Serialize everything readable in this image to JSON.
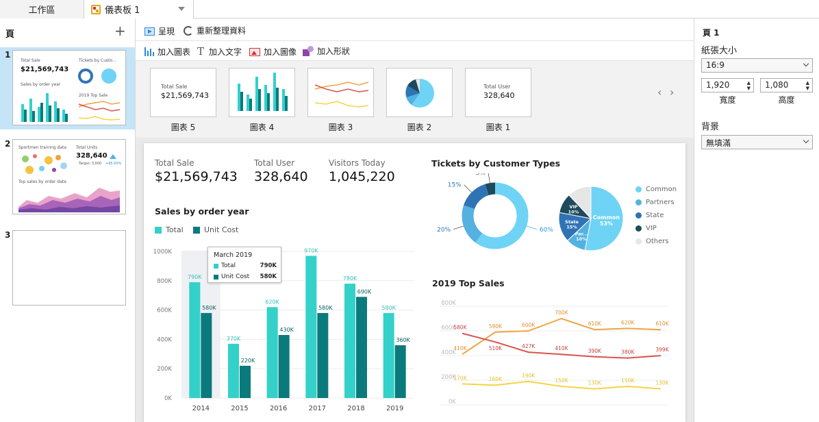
{
  "tabs": {
    "workspace": "工作區",
    "dashboard": "儀表板 1"
  },
  "pages_panel": {
    "title": "頁",
    "pages": [
      {
        "number": "1",
        "total_sale_label": "Total Sale",
        "total_sale_value": "$21,569,743",
        "tickets_label": "Tickets by Custo...",
        "sales_label": "Sales by order year",
        "top_sale_label": "2019 Top Sale"
      },
      {
        "number": "2",
        "sportmen_label": "Sportmen training data",
        "total_units_label": "Total Units",
        "total_units_value": "328,640",
        "target_label": "Target: 3,000",
        "delta_label": "+95.00%",
        "top_sales_label": "Top sales by order date"
      },
      {
        "number": "3"
      }
    ]
  },
  "toolbar": {
    "present": "呈現",
    "refresh": "重新整理資料",
    "add_chart": "加入圖表",
    "add_text": "加入文字",
    "add_image": "加入圖像",
    "add_shape": "加入形狀"
  },
  "gallery": {
    "cards": [
      {
        "label": "圖表 5",
        "kpi_label": "Total Sale",
        "kpi_value": "$21,569,743"
      },
      {
        "label": "圖表 4"
      },
      {
        "label": "圖表 3"
      },
      {
        "label": "圖表 2"
      },
      {
        "label": "圖表 1",
        "kpi_label": "Total User",
        "kpi_value": "328,640"
      }
    ],
    "nav_prev": "‹",
    "nav_next": "›"
  },
  "kpis": [
    {
      "label": "Total Sale",
      "value": "$21,569,743"
    },
    {
      "label": "Total User",
      "value": "328,640"
    },
    {
      "label": "Visitors Today",
      "value": "1,045,220"
    }
  ],
  "colors": {
    "total": "#33d1c9",
    "unit_cost": "#0b7a7d",
    "common": "#6fd3f5",
    "partners": "#54b1e0",
    "state": "#2f73b5",
    "vip": "#1e4a5c",
    "others": "#e6e6e6",
    "line_orange": "#f0a342",
    "line_red": "#d9534f",
    "line_yellow": "#f5d442"
  },
  "chart_data": [
    {
      "type": "bar",
      "title": "Sales by order year",
      "categories": [
        "2014",
        "2015",
        "2016",
        "2017",
        "2018",
        "2019"
      ],
      "series": [
        {
          "name": "Total",
          "values": [
            790,
            370,
            620,
            970,
            780,
            580
          ],
          "labels": [
            "790K",
            "370K",
            "620K",
            "970K",
            "780K",
            "580K"
          ]
        },
        {
          "name": "Unit Cost",
          "values": [
            580,
            220,
            430,
            580,
            690,
            360
          ],
          "labels": [
            "580K",
            "220K",
            "430K",
            "580K",
            "690K",
            "360K"
          ]
        }
      ],
      "ylim": [
        0,
        1000
      ],
      "yticks": [
        "0K",
        "200K",
        "400K",
        "600K",
        "800K",
        "1000K"
      ],
      "grid": true,
      "legend": "top-left",
      "tooltip": {
        "title": "March 2019",
        "rows": [
          {
            "name": "Total",
            "value": "790K"
          },
          {
            "name": "Unit Cost",
            "value": "580K"
          }
        ]
      }
    },
    {
      "type": "pie",
      "title": "Tickets by Customer Types",
      "variant": "donut",
      "slices": [
        {
          "value": 60,
          "label": "60%"
        },
        {
          "value": 20,
          "label": "20%"
        },
        {
          "value": 15,
          "label": "15%"
        },
        {
          "value": 5,
          "label": "5%"
        }
      ]
    },
    {
      "type": "pie",
      "slices": [
        {
          "name": "Common",
          "value": 53,
          "label": "Common",
          "pct": "53%"
        },
        {
          "name": "Partners",
          "value": 10,
          "label": "Par...",
          "pct": "10%"
        },
        {
          "name": "State",
          "value": 15,
          "label": "State",
          "pct": "15%"
        },
        {
          "name": "VIP",
          "value": 10,
          "label": "VIP",
          "pct": "10%"
        },
        {
          "name": "Others",
          "value": 12,
          "label": "",
          "pct": ""
        }
      ],
      "legend": "right"
    },
    {
      "type": "line",
      "title": "2019 Top Sales",
      "ylim": [
        0,
        800
      ],
      "yticks": [
        "0K",
        "200K",
        "400K",
        "600K",
        "800K"
      ],
      "grid": true,
      "series": [
        {
          "values": [
            410,
            590,
            600,
            700,
            610,
            620,
            610
          ],
          "labels": [
            "410K",
            "590K",
            "600K",
            "700K",
            "610K",
            "620K",
            "610K"
          ]
        },
        {
          "values": [
            580,
            510,
            427,
            410,
            390,
            380,
            399
          ],
          "labels": [
            "580K",
            "510K",
            "427K",
            "410K",
            "390K",
            "380K",
            "399K"
          ]
        },
        {
          "values": [
            170,
            160,
            190,
            150,
            130,
            150,
            130
          ],
          "labels": [
            "170K",
            "160K",
            "190K",
            "150K",
            "130K",
            "150K",
            "130K"
          ]
        }
      ]
    }
  ],
  "properties": {
    "title": "頁 1",
    "paper_size_label": "紙張大小",
    "paper_size_value": "16:9",
    "width_value": "1,920",
    "width_label": "寬度",
    "height_value": "1,080",
    "height_label": "高度",
    "background_label": "背景",
    "background_value": "無填滿"
  }
}
